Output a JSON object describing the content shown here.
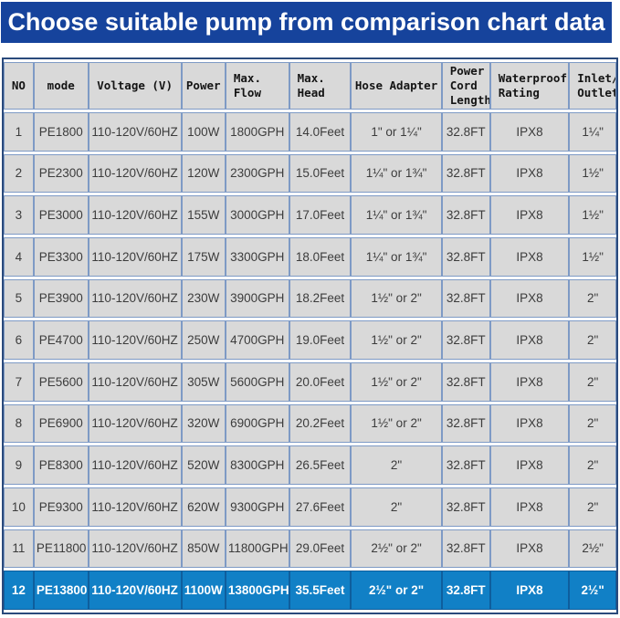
{
  "banner": {
    "title": "Choose suitable pump from comparison chart data"
  },
  "colors": {
    "banner_bg": "#16439c",
    "banner_text": "#ffffff",
    "cell_bg": "#d9d9d9",
    "grid_border": "#7e9ac5",
    "outer_border": "#2a4a7c",
    "highlight_row_bg": "#1180c6",
    "highlight_row_text": "#ffffff"
  },
  "chart_data": {
    "type": "table",
    "title": "Choose suitable pump from comparison chart data",
    "columns": [
      "NO",
      "mode",
      "Voltage (V)",
      "Power",
      "Max.\nFlow",
      "Max.\nHead",
      "Hose Adapter",
      "Power\nCord\nLength",
      "Waterproof\nRating",
      "Inlet/\nOutlet"
    ],
    "rows": [
      [
        "1",
        "PE1800",
        "110-120V/60HZ",
        "100W",
        "1800GPH",
        "14.0Feet",
        "1\" or 1¼\"",
        "32.8FT",
        "IPX8",
        "1¼\""
      ],
      [
        "2",
        "PE2300",
        "110-120V/60HZ",
        "120W",
        "2300GPH",
        "15.0Feet",
        "1¼\" or 1¾\"",
        "32.8FT",
        "IPX8",
        "1½\""
      ],
      [
        "3",
        "PE3000",
        "110-120V/60HZ",
        "155W",
        "3000GPH",
        "17.0Feet",
        "1¼\" or 1¾\"",
        "32.8FT",
        "IPX8",
        "1½\""
      ],
      [
        "4",
        "PE3300",
        "110-120V/60HZ",
        "175W",
        "3300GPH",
        "18.0Feet",
        "1¼\" or 1¾\"",
        "32.8FT",
        "IPX8",
        "1½\""
      ],
      [
        "5",
        "PE3900",
        "110-120V/60HZ",
        "230W",
        "3900GPH",
        "18.2Feet",
        "1½\" or 2\"",
        "32.8FT",
        "IPX8",
        "2\""
      ],
      [
        "6",
        "PE4700",
        "110-120V/60HZ",
        "250W",
        "4700GPH",
        "19.0Feet",
        "1½\" or 2\"",
        "32.8FT",
        "IPX8",
        "2\""
      ],
      [
        "7",
        "PE5600",
        "110-120V/60HZ",
        "305W",
        "5600GPH",
        "20.0Feet",
        "1½\" or 2\"",
        "32.8FT",
        "IPX8",
        "2\""
      ],
      [
        "8",
        "PE6900",
        "110-120V/60HZ",
        "320W",
        "6900GPH",
        "20.2Feet",
        "1½\" or 2\"",
        "32.8FT",
        "IPX8",
        "2\""
      ],
      [
        "9",
        "PE8300",
        "110-120V/60HZ",
        "520W",
        "8300GPH",
        "26.5Feet",
        "2\"",
        "32.8FT",
        "IPX8",
        "2\""
      ],
      [
        "10",
        "PE9300",
        "110-120V/60HZ",
        "620W",
        "9300GPH",
        "27.6Feet",
        "2\"",
        "32.8FT",
        "IPX8",
        "2\""
      ],
      [
        "11",
        "PE11800",
        "110-120V/60HZ",
        "850W",
        "11800GPH",
        "29.0Feet",
        "2½\" or 2\"",
        "32.8FT",
        "IPX8",
        "2½\""
      ],
      [
        "12",
        "PE13800",
        "110-120V/60HZ",
        "1100W",
        "13800GPH",
        "35.5Feet",
        "2½\" or 2\"",
        "32.8FT",
        "IPX8",
        "2½\""
      ]
    ],
    "highlighted_row_no": "12",
    "column_width_percents": [
      4.9,
      8.9,
      15.2,
      7.2,
      10.4,
      10.1,
      14.8,
      7.9,
      12.9,
      7.7
    ]
  }
}
